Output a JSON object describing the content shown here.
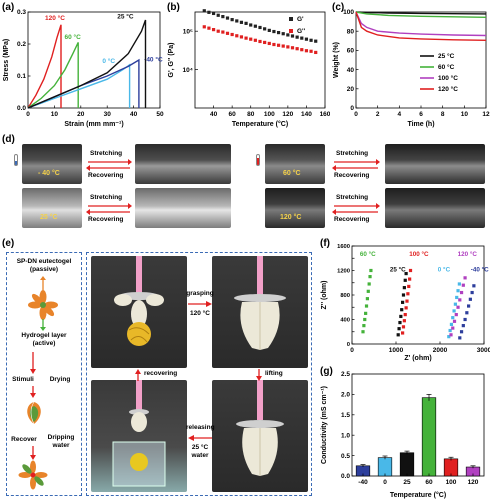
{
  "panels": {
    "a": {
      "label": "(a)",
      "chart_data": {
        "type": "line",
        "xlabel": "Strain (mm mm⁻¹)",
        "ylabel": "Stress (MPa)",
        "xlim": [
          0,
          50
        ],
        "ylim": [
          0,
          0.3
        ],
        "xticks": [
          "0",
          "10",
          "20",
          "30",
          "40",
          "50"
        ],
        "yticks": [
          "0.0",
          "0.1",
          "0.2",
          "0.3"
        ],
        "series": [
          {
            "name": "120 °C",
            "color": "#e02020",
            "x": [
              0,
              3,
              6,
              9,
              11,
              12.5,
              12.5
            ],
            "y": [
              0,
              0.04,
              0.09,
              0.16,
              0.22,
              0.26,
              0
            ]
          },
          {
            "name": "60 °C",
            "color": "#44b23a",
            "x": [
              0,
              5,
              10,
              14,
              17,
              19,
              19
            ],
            "y": [
              0,
              0.03,
              0.07,
              0.12,
              0.17,
              0.205,
              0
            ]
          },
          {
            "name": "0 °C",
            "color": "#49b8e8",
            "x": [
              0,
              10,
              20,
              30,
              36,
              38.5,
              38.5
            ],
            "y": [
              0,
              0.03,
              0.06,
              0.09,
              0.12,
              0.135,
              0
            ]
          },
          {
            "name": "-40 °C",
            "color": "#2d3e9c",
            "x": [
              0,
              10,
              20,
              30,
              38,
              42,
              42
            ],
            "y": [
              0,
              0.035,
              0.07,
              0.1,
              0.13,
              0.15,
              0
            ]
          },
          {
            "name": "25 °C",
            "color": "#111111",
            "x": [
              0,
              10,
              20,
              30,
              38,
              43,
              44.5,
              44.5
            ],
            "y": [
              0,
              0.035,
              0.07,
              0.11,
              0.17,
              0.24,
              0.275,
              0
            ]
          }
        ]
      }
    },
    "b": {
      "label": "(b)",
      "chart_data": {
        "type": "scatter",
        "xlabel": "Temperature (°C)",
        "ylabel": "G', G'' (Pa)",
        "xlim": [
          20,
          160
        ],
        "ylim_log": [
          3,
          5.5
        ],
        "xticks": [
          "40",
          "60",
          "80",
          "100",
          "120",
          "140",
          "160"
        ],
        "yticks": [
          "10⁴",
          "10⁵"
        ],
        "series": [
          {
            "name": "G'",
            "color": "#222222",
            "x": [
              30,
              35,
              40,
              45,
              50,
              55,
              60,
              65,
              70,
              75,
              80,
              85,
              90,
              95,
              100,
              105,
              110,
              115,
              120,
              125,
              130,
              135,
              140,
              145,
              150
            ],
            "y": [
              340000.0,
              310000.0,
              290000.0,
              260000.0,
              240000.0,
              220000.0,
              200000.0,
              185000.0,
              170000.0,
              160000.0,
              145000.0,
              135000.0,
              125000.0,
              115000.0,
              105000.0,
              98000.0,
              92000.0,
              86000.0,
              80000.0,
              75000.0,
              70000.0,
              66000.0,
              62000.0,
              58000.0,
              55000.0
            ]
          },
          {
            "name": "G''",
            "color": "#e02020",
            "x": [
              30,
              35,
              40,
              45,
              50,
              55,
              60,
              65,
              70,
              75,
              80,
              85,
              90,
              95,
              100,
              105,
              110,
              115,
              120,
              125,
              130,
              135,
              140,
              145,
              150
            ],
            "y": [
              130000.0,
              120000.0,
              110000.0,
              100000.0,
              95000.0,
              88000.0,
              82000.0,
              76000.0,
              71000.0,
              66000.0,
              62000.0,
              58000.0,
              54000.0,
              51000.0,
              48000.0,
              45000.0,
              43000.0,
              41000.0,
              39000.0,
              37000.0,
              35000.0,
              33000.0,
              31000.0,
              30000.0,
              28000.0
            ]
          }
        ]
      }
    },
    "c": {
      "label": "(c)",
      "chart_data": {
        "type": "line",
        "xlabel": "Time (h)",
        "ylabel": "Weight (%)",
        "xlim": [
          0,
          12
        ],
        "ylim": [
          0,
          100
        ],
        "xticks": [
          "0",
          "2",
          "4",
          "6",
          "8",
          "10",
          "12"
        ],
        "yticks": [
          "0",
          "20",
          "40",
          "60",
          "80",
          "100"
        ],
        "series": [
          {
            "name": "25 °C",
            "color": "#111111",
            "x": [
              0,
              1,
              3,
              6,
              9,
              12
            ],
            "y": [
              100,
              99.5,
              99,
              98.5,
              98.2,
              98
            ]
          },
          {
            "name": "60 °C",
            "color": "#44b23a",
            "x": [
              0,
              1,
              3,
              6,
              9,
              12
            ],
            "y": [
              100,
              98,
              96.5,
              95.5,
              95,
              94.5
            ]
          },
          {
            "name": "100 °C",
            "color": "#b040c0",
            "x": [
              0,
              0.5,
              1,
              2,
              4,
              6,
              9,
              12
            ],
            "y": [
              100,
              88,
              84,
              80,
              78,
              77,
              76,
              75.5
            ]
          },
          {
            "name": "120 °C",
            "color": "#e02020",
            "x": [
              0,
              0.5,
              1,
              2,
              4,
              6,
              9,
              12
            ],
            "y": [
              100,
              84,
              80,
              76,
              73,
              72,
              71,
              70.5
            ]
          }
        ]
      }
    },
    "d": {
      "label": "(d)",
      "left": {
        "top_tag": "- 40 °C",
        "bottom_tag": "25 °C",
        "stretch": "Stretching",
        "recover": "Recovering"
      },
      "right": {
        "top_tag": "60 °C",
        "bottom_tag": "120 °C",
        "stretch": "Stretching",
        "recover": "Recovering"
      }
    },
    "e": {
      "label": "(e)",
      "flow": {
        "passive": "SP-DN eutectogel\n(passive)",
        "active": "Hydrogel layer\n(active)",
        "stimuli": "Stimuli",
        "drying": "Drying",
        "recover": "Recover",
        "dripping": "Dripping\nwater"
      },
      "grip": {
        "grasping": "grasping",
        "grasp_temp": "120 °C",
        "lifting": "lifting",
        "recovering": "recovering",
        "releasing": "releasing",
        "release_temp": "25 °C",
        "release_medium": "water"
      }
    },
    "f": {
      "label": "(f)",
      "chart_data": {
        "type": "scatter",
        "xlabel": "Z' (ohm)",
        "ylabel": "Z'' (ohm)",
        "xlim": [
          0,
          3000
        ],
        "ylim": [
          0,
          1600
        ],
        "xticks": [
          "0",
          "1000",
          "2000",
          "3000"
        ],
        "yticks": [
          "0",
          "200",
          "400",
          "600",
          "800",
          "1000",
          "1200",
          "1400",
          "1600"
        ],
        "series": [
          {
            "name": "60 °C",
            "color": "#44b23a",
            "x": [
              250,
              270,
              290,
              310,
              330,
              350,
              370,
              390,
              410,
              430
            ],
            "y": [
              200,
              300,
              400,
              500,
              620,
              740,
              860,
              980,
              1100,
              1200
            ]
          },
          {
            "name": "25 °C",
            "color": "#111111",
            "x": [
              1050,
              1070,
              1090,
              1110,
              1130,
              1150,
              1170,
              1190,
              1210,
              1230
            ],
            "y": [
              150,
              250,
              350,
              450,
              560,
              680,
              800,
              920,
              1040,
              1150
            ]
          },
          {
            "name": "100 °C",
            "color": "#e02020",
            "x": [
              1150,
              1170,
              1190,
              1210,
              1230,
              1250,
              1270,
              1290,
              1310,
              1330
            ],
            "y": [
              180,
              280,
              380,
              480,
              590,
              700,
              820,
              940,
              1060,
              1200
            ]
          },
          {
            "name": "0 °C",
            "color": "#49b8e8",
            "x": [
              2200,
              2230,
              2260,
              2290,
              2320,
              2350,
              2380,
              2410,
              2440
            ],
            "y": [
              120,
              220,
              320,
              430,
              540,
              650,
              760,
              870,
              980
            ]
          },
          {
            "name": "120 °C",
            "color": "#b040c0",
            "x": [
              2250,
              2290,
              2330,
              2370,
              2410,
              2450,
              2490,
              2530,
              2570
            ],
            "y": [
              150,
              260,
              370,
              480,
              600,
              720,
              840,
              960,
              1080
            ]
          },
          {
            "name": "-40 °C",
            "color": "#2d3e9c",
            "x": [
              2450,
              2490,
              2530,
              2570,
              2610,
              2650,
              2690,
              2730,
              2770
            ],
            "y": [
              100,
              200,
              300,
              400,
              510,
              620,
              730,
              840,
              950
            ]
          }
        ]
      }
    },
    "g": {
      "label": "(g)",
      "chart_data": {
        "type": "bar",
        "xlabel": "Temperature (°C)",
        "ylabel": "Conductivity (mS cm⁻¹)",
        "ylim": [
          0,
          2.5
        ],
        "yticks": [
          "0.0",
          "0.5",
          "1.0",
          "1.5",
          "2.0",
          "2.5"
        ],
        "categories": [
          "-40",
          "0",
          "25",
          "60",
          "100",
          "120"
        ],
        "values": [
          0.25,
          0.45,
          0.57,
          1.92,
          0.42,
          0.22
        ],
        "errors": [
          0.03,
          0.04,
          0.04,
          0.08,
          0.04,
          0.03
        ],
        "colors": [
          "#2d3e9c",
          "#49b8e8",
          "#111111",
          "#44b23a",
          "#e02020",
          "#b040c0"
        ]
      }
    }
  }
}
